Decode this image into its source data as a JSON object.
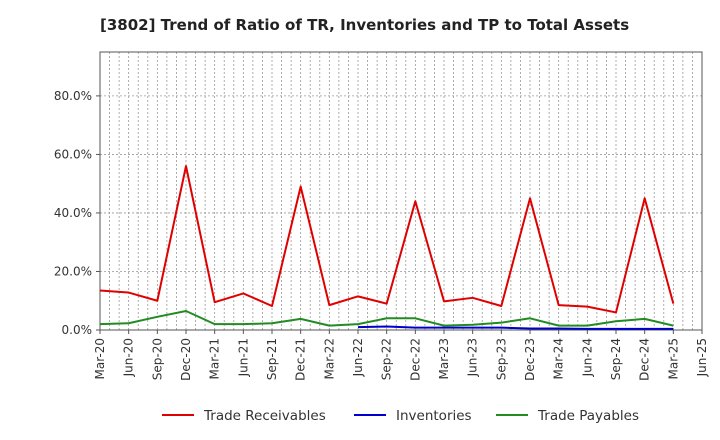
{
  "chart_data": {
    "type": "line",
    "title": "[3802]  Trend of Ratio of TR, Inventories and TP to Total Assets",
    "xlabel": "",
    "ylabel": "",
    "ylim": [
      0,
      95
    ],
    "y_ticks": [
      "0.0%",
      "20.0%",
      "40.0%",
      "60.0%",
      "80.0%"
    ],
    "y_tick_values": [
      0,
      20,
      40,
      60,
      80
    ],
    "grid": true,
    "legend_position": "bottom",
    "categories": [
      "Mar-20",
      "Jun-20",
      "Sep-20",
      "Dec-20",
      "Mar-21",
      "Jun-21",
      "Sep-21",
      "Dec-21",
      "Mar-22",
      "Jun-22",
      "Sep-22",
      "Dec-22",
      "Mar-23",
      "Jun-23",
      "Sep-23",
      "Dec-23",
      "Mar-24",
      "Jun-24",
      "Sep-24",
      "Dec-24",
      "Mar-25",
      "Jun-25"
    ],
    "series": [
      {
        "name": "Trade Receivables",
        "color": "#e00000",
        "values": [
          13.5,
          12.8,
          10.0,
          56.0,
          9.5,
          12.5,
          8.2,
          49.0,
          8.5,
          11.5,
          9.0,
          44.0,
          9.8,
          11.0,
          8.2,
          45.0,
          8.5,
          8.0,
          6.0,
          45.0,
          9.0,
          null
        ]
      },
      {
        "name": "Inventories",
        "color": "#0000cc",
        "values": [
          null,
          null,
          null,
          null,
          null,
          null,
          null,
          null,
          null,
          1.0,
          1.2,
          0.8,
          0.8,
          0.8,
          0.8,
          0.5,
          0.5,
          0.4,
          0.4,
          0.4,
          0.4,
          null
        ]
      },
      {
        "name": "Trade Payables",
        "color": "#228b22",
        "values": [
          2.0,
          2.3,
          4.5,
          6.5,
          2.0,
          2.0,
          2.3,
          3.8,
          1.5,
          2.0,
          4.0,
          4.0,
          1.5,
          1.8,
          2.5,
          4.0,
          1.5,
          1.5,
          3.0,
          3.8,
          1.5,
          null
        ]
      }
    ]
  }
}
